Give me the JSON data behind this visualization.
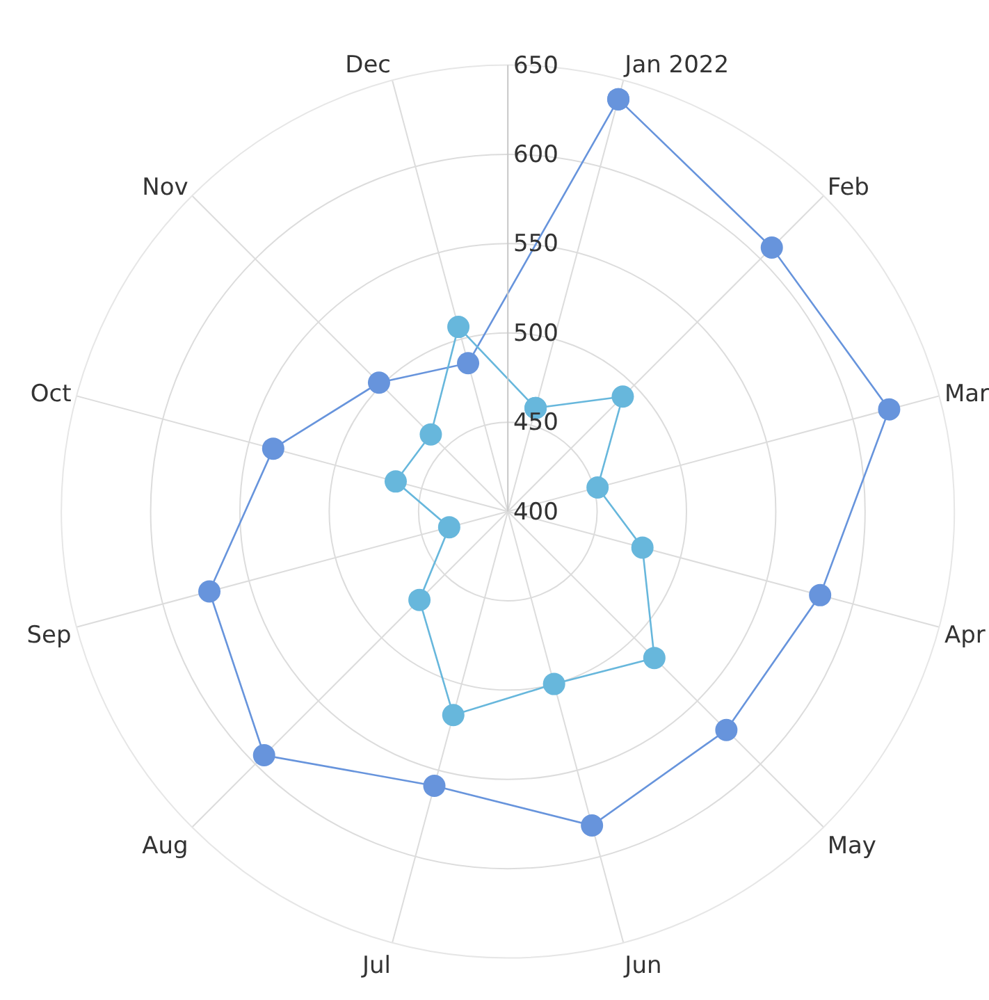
{
  "chart_data": {
    "type": "radar",
    "categories": [
      "Jan 2022",
      "Feb",
      "Mar",
      "Apr",
      "May",
      "Jun",
      "Jul",
      "Aug",
      "Sep",
      "Oct",
      "Nov",
      "Dec"
    ],
    "series": [
      {
        "color": "#6794dc",
        "values": [
          639,
          609,
          621,
          581,
          573,
          582,
          559,
          593,
          573,
          536,
          502,
          486
        ]
      },
      {
        "color": "#67b7dc",
        "values": [
          460,
          491,
          452,
          478,
          516,
          500,
          518,
          470,
          434,
          465,
          461,
          507
        ]
      }
    ],
    "ylim": [
      400,
      650
    ],
    "yticks": [
      400,
      450,
      500,
      550,
      600,
      650
    ],
    "grid": true,
    "marker": "circle"
  }
}
